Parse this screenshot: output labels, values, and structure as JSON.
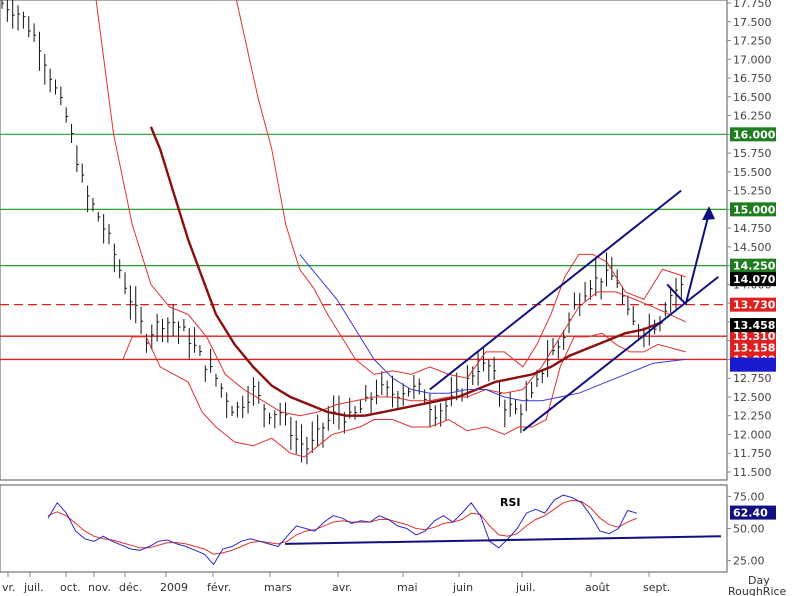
{
  "chart_data": [
    {
      "type": "ohlc",
      "instrument": "RoughRice",
      "period": "Day",
      "ylim": [
        11.45,
        17.8
      ],
      "y_ticks": [
        "17.750",
        "17.500",
        "17.250",
        "17.000",
        "16.750",
        "16.500",
        "16.250",
        "16.000",
        "15.750",
        "15.500",
        "15.250",
        "15.000",
        "14.750",
        "14.500",
        "14.250",
        "14.000",
        "13.750",
        "13.500",
        "13.250",
        "13.000",
        "12.750",
        "12.500",
        "12.250",
        "12.000",
        "11.750",
        "11.500"
      ],
      "x_ticks": [
        "vr.",
        "juil.",
        "oct.",
        "nov.",
        "déc.",
        "2009",
        "févr.",
        "mars",
        "avr.",
        "mai",
        "juin",
        "juil.",
        "août",
        "sept."
      ],
      "x_bottom_right": [
        "Day",
        "RoughRice"
      ],
      "horizontal_levels": [
        {
          "price": 16.0,
          "label": "16.000",
          "color": "#2f9a2f",
          "style": "solid"
        },
        {
          "price": 15.0,
          "label": "15.000",
          "color": "#2f9a2f",
          "style": "solid"
        },
        {
          "price": 14.25,
          "label": "14.250",
          "color": "#2f9a2f",
          "style": "solid"
        },
        {
          "price": 13.73,
          "label": "13.730",
          "color": "#e02020",
          "style": "dashed"
        },
        {
          "price": 13.31,
          "label": "13.310",
          "color": "#e02020",
          "style": "solid"
        },
        {
          "price": 13.0,
          "label": "13.000",
          "color": "#e02020",
          "style": "solid"
        }
      ],
      "value_badges": [
        {
          "price": 14.07,
          "label": "14.070",
          "color": "#000000"
        },
        {
          "price": 13.458,
          "label": "13.458",
          "color": "#000000"
        },
        {
          "price": 13.158,
          "label": "13.158",
          "color": "#e02020"
        },
        {
          "price": 12.93,
          "label": "",
          "color": "#1a1ad0"
        }
      ],
      "close_path": [
        [
          17.75,
          0
        ],
        [
          17.6,
          4
        ],
        [
          17.2,
          8
        ],
        [
          16.5,
          12
        ],
        [
          16.2,
          14
        ],
        [
          15.2,
          18
        ],
        [
          15.0,
          20
        ],
        [
          14.6,
          23
        ],
        [
          13.9,
          27
        ],
        [
          13.3,
          31
        ],
        [
          13.5,
          34
        ],
        [
          13.5,
          37
        ],
        [
          13.3,
          40
        ],
        [
          13.0,
          43
        ],
        [
          12.75,
          46
        ],
        [
          12.3,
          50
        ],
        [
          12.6,
          54
        ],
        [
          12.3,
          57
        ],
        [
          12.3,
          60
        ],
        [
          11.95,
          63
        ],
        [
          11.8,
          66
        ],
        [
          12.1,
          69
        ],
        [
          12.3,
          72
        ],
        [
          12.2,
          75
        ],
        [
          12.4,
          78
        ],
        [
          12.6,
          81
        ],
        [
          12.55,
          84
        ],
        [
          12.6,
          87
        ],
        [
          12.6,
          90
        ],
        [
          12.3,
          93
        ],
        [
          12.4,
          96
        ],
        [
          12.6,
          99
        ],
        [
          12.9,
          102
        ],
        [
          12.9,
          105
        ],
        [
          12.4,
          108
        ],
        [
          12.3,
          111
        ],
        [
          12.5,
          114
        ],
        [
          13.0,
          117
        ],
        [
          13.2,
          120
        ],
        [
          13.7,
          123
        ],
        [
          14.0,
          126
        ],
        [
          14.1,
          129
        ],
        [
          14.1,
          132
        ],
        [
          13.5,
          135
        ],
        [
          13.4,
          138
        ],
        [
          13.5,
          141
        ],
        [
          13.9,
          144
        ],
        [
          14.0,
          147
        ]
      ],
      "price_lines": [
        {
          "name": "bollinger_upper",
          "color": "#e03030",
          "width": 1,
          "points": [
            [
              17.9,
              50
            ],
            [
              16.5,
              55
            ],
            [
              15.8,
              58
            ],
            [
              14.8,
              61
            ],
            [
              14.2,
              64
            ],
            [
              13.95,
              67
            ],
            [
              13.6,
              70
            ],
            [
              13.3,
              73
            ],
            [
              13.0,
              76
            ],
            [
              12.8,
              80
            ],
            [
              12.85,
              84
            ],
            [
              12.8,
              88
            ],
            [
              12.9,
              92
            ],
            [
              12.8,
              96
            ],
            [
              12.75,
              100
            ],
            [
              13.1,
              104
            ],
            [
              13.1,
              108
            ],
            [
              12.9,
              112
            ],
            [
              13.2,
              115
            ],
            [
              13.6,
              118
            ],
            [
              14.1,
              121
            ],
            [
              14.4,
              124
            ],
            [
              14.4,
              127
            ],
            [
              14.3,
              130
            ],
            [
              13.9,
              134
            ],
            [
              13.8,
              138
            ],
            [
              14.2,
              142
            ],
            [
              14.1,
              147
            ]
          ]
        },
        {
          "name": "bollinger_lower",
          "color": "#e03030",
          "width": 1,
          "points": [
            [
              13.0,
              26
            ],
            [
              13.3,
              28
            ],
            [
              13.3,
              31
            ],
            [
              12.9,
              34
            ],
            [
              12.8,
              37
            ],
            [
              12.7,
              40
            ],
            [
              12.3,
              43
            ],
            [
              12.1,
              46
            ],
            [
              11.9,
              50
            ],
            [
              11.85,
              54
            ],
            [
              11.95,
              58
            ],
            [
              11.75,
              62
            ],
            [
              11.7,
              65
            ],
            [
              11.85,
              68
            ],
            [
              12.0,
              71
            ],
            [
              12.05,
              74
            ],
            [
              12.1,
              77
            ],
            [
              12.2,
              80
            ],
            [
              12.2,
              84
            ],
            [
              12.1,
              88
            ],
            [
              12.1,
              92
            ],
            [
              12.2,
              96
            ],
            [
              12.05,
              100
            ],
            [
              12.1,
              104
            ],
            [
              12.0,
              108
            ],
            [
              12.1,
              111
            ],
            [
              12.1,
              114
            ],
            [
              12.2,
              117
            ],
            [
              12.9,
              120
            ],
            [
              13.3,
              123
            ],
            [
              13.3,
              126
            ],
            [
              13.35,
              129
            ],
            [
              13.2,
              132
            ],
            [
              13.1,
              135
            ],
            [
              13.1,
              138
            ],
            [
              13.2,
              141
            ],
            [
              13.1,
              147
            ]
          ]
        },
        {
          "name": "bollinger_mid",
          "color": "#e03030",
          "width": 1,
          "points": [
            [
              17.9,
              20
            ],
            [
              16.0,
              24
            ],
            [
              14.8,
              28
            ],
            [
              14.0,
              32
            ],
            [
              13.7,
              36
            ],
            [
              13.6,
              40
            ],
            [
              13.3,
              44
            ],
            [
              12.8,
              48
            ],
            [
              12.6,
              52
            ],
            [
              12.45,
              56
            ],
            [
              12.3,
              60
            ],
            [
              12.25,
              64
            ],
            [
              12.3,
              68
            ],
            [
              12.4,
              72
            ],
            [
              12.45,
              76
            ],
            [
              12.5,
              80
            ],
            [
              12.5,
              84
            ],
            [
              12.45,
              88
            ],
            [
              12.45,
              92
            ],
            [
              12.5,
              96
            ],
            [
              12.5,
              100
            ],
            [
              12.6,
              104
            ],
            [
              12.55,
              108
            ],
            [
              12.6,
              112
            ],
            [
              12.9,
              116
            ],
            [
              13.3,
              120
            ],
            [
              13.7,
              124
            ],
            [
              13.9,
              128
            ],
            [
              13.9,
              132
            ],
            [
              13.8,
              136
            ],
            [
              13.7,
              140
            ],
            [
              13.5,
              147
            ]
          ]
        },
        {
          "name": "moving_average_long",
          "color": "#8a1010",
          "width": 2.4,
          "points": [
            [
              16.1,
              32
            ],
            [
              15.8,
              34
            ],
            [
              15.2,
              37
            ],
            [
              14.6,
              40
            ],
            [
              14.1,
              43
            ],
            [
              13.6,
              46
            ],
            [
              13.2,
              50
            ],
            [
              12.9,
              54
            ],
            [
              12.65,
              58
            ],
            [
              12.5,
              62
            ],
            [
              12.4,
              66
            ],
            [
              12.3,
              70
            ],
            [
              12.25,
              74
            ],
            [
              12.25,
              78
            ],
            [
              12.3,
              82
            ],
            [
              12.35,
              86
            ],
            [
              12.4,
              90
            ],
            [
              12.45,
              94
            ],
            [
              12.5,
              98
            ],
            [
              12.6,
              102
            ],
            [
              12.7,
              106
            ],
            [
              12.75,
              110
            ],
            [
              12.8,
              114
            ],
            [
              12.9,
              118
            ],
            [
              13.05,
              122
            ],
            [
              13.15,
              126
            ],
            [
              13.25,
              130
            ],
            [
              13.35,
              134
            ],
            [
              13.4,
              138
            ],
            [
              13.5,
              142
            ]
          ]
        },
        {
          "name": "moving_average_short",
          "color": "#3a3ad8",
          "width": 1,
          "points": [
            [
              14.4,
              64
            ],
            [
              14.1,
              68
            ],
            [
              13.8,
              72
            ],
            [
              13.4,
              76
            ],
            [
              13.0,
              80
            ],
            [
              12.75,
              84
            ],
            [
              12.6,
              88
            ],
            [
              12.55,
              92
            ],
            [
              12.55,
              96
            ],
            [
              12.6,
              100
            ],
            [
              12.6,
              104
            ],
            [
              12.5,
              108
            ],
            [
              12.45,
              112
            ],
            [
              12.45,
              116
            ],
            [
              12.5,
              120
            ],
            [
              12.55,
              124
            ],
            [
              12.65,
              128
            ],
            [
              12.75,
              132
            ],
            [
              12.85,
              136
            ],
            [
              12.95,
              140
            ],
            [
              13.0,
              147
            ]
          ]
        }
      ],
      "channel_lines": [
        {
          "color": "#101080",
          "points": [
            [
              12.6,
              92
            ],
            [
              15.25,
              146
            ]
          ]
        },
        {
          "color": "#101080",
          "points": [
            [
              12.05,
              112
            ],
            [
              14.1,
              154
            ]
          ]
        }
      ],
      "forecast_arrow": {
        "color": "#101080",
        "points": [
          [
            14.0,
            143
          ],
          [
            13.8,
            146
          ],
          [
            13.74,
            147
          ],
          [
            14.95,
            152
          ]
        ]
      }
    },
    {
      "type": "line",
      "title": "RSI",
      "ylim": [
        20,
        80
      ],
      "y_ticks": [
        "75.00",
        "50.00",
        "25.00"
      ],
      "last_value": "62.40",
      "series": [
        {
          "color": "#2a2ac8",
          "values": [
            58,
            70,
            62,
            48,
            42,
            40,
            44,
            40,
            37,
            34,
            33,
            36,
            40,
            41,
            38,
            36,
            33,
            30,
            22,
            34,
            36,
            40,
            42,
            40,
            38,
            36,
            44,
            52,
            50,
            48,
            55,
            60,
            58,
            54,
            56,
            55,
            60,
            57,
            52,
            50,
            45,
            48,
            56,
            60,
            55,
            62,
            70,
            60,
            40,
            35,
            42,
            50,
            62,
            65,
            62,
            72,
            76,
            74,
            70,
            60,
            48,
            46,
            50,
            64,
            62
          ]
        },
        {
          "color": "#e03030",
          "values": [
            60,
            63,
            60,
            54,
            48,
            44,
            42,
            41,
            39,
            37,
            35,
            35,
            37,
            39,
            39,
            38,
            36,
            34,
            30,
            31,
            33,
            36,
            39,
            40,
            39,
            38,
            40,
            45,
            48,
            49,
            52,
            55,
            56,
            55,
            55,
            55,
            57,
            57,
            55,
            53,
            50,
            49,
            51,
            54,
            55,
            57,
            62,
            61,
            52,
            45,
            44,
            46,
            52,
            57,
            60,
            65,
            70,
            72,
            71,
            66,
            58,
            53,
            51,
            55,
            58
          ]
        },
        {
          "color": "#101080",
          "values": [
            38,
            38,
            39,
            40,
            40,
            41,
            41,
            42,
            42,
            43,
            43,
            44
          ]
        }
      ]
    }
  ]
}
